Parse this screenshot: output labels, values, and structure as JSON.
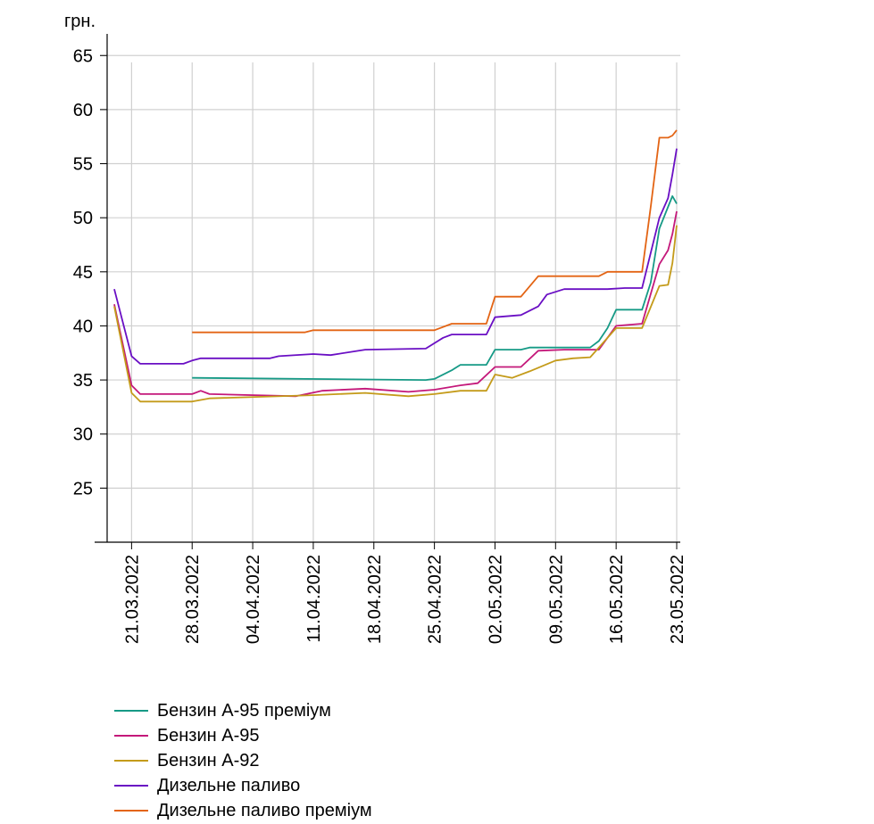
{
  "chart_data": {
    "type": "line",
    "title": "",
    "ylabel": "грн.",
    "xlabel": "",
    "ylim": [
      20,
      67
    ],
    "yticks": [
      25,
      30,
      35,
      40,
      45,
      50,
      55,
      60,
      65
    ],
    "xlim": [
      "2022-03-19",
      "2022-05-23"
    ],
    "xticks": [
      "21.03.2022",
      "28.03.2022",
      "04.04.2022",
      "11.04.2022",
      "18.04.2022",
      "25.04.2022",
      "02.05.2022",
      "09.05.2022",
      "16.05.2022",
      "23.05.2022"
    ],
    "grid": "vertical and horizontal",
    "legend_position": "bottom-left",
    "series": [
      {
        "name": "Бензин А-95 преміум",
        "color": "#169a86",
        "points": [
          [
            "2022-03-28",
            35.2
          ],
          [
            "2022-04-24",
            35.0
          ],
          [
            "2022-04-25",
            35.1
          ],
          [
            "2022-04-27",
            35.9
          ],
          [
            "2022-04-28",
            36.4
          ],
          [
            "2022-04-30",
            36.4
          ],
          [
            "2022-05-01",
            36.4
          ],
          [
            "2022-05-02",
            37.8
          ],
          [
            "2022-05-05",
            37.8
          ],
          [
            "2022-05-06",
            38.0
          ],
          [
            "2022-05-13",
            38.0
          ],
          [
            "2022-05-14",
            38.6
          ],
          [
            "2022-05-15",
            39.8
          ],
          [
            "2022-05-16",
            41.5
          ],
          [
            "2022-05-19",
            41.5
          ],
          [
            "2022-05-20",
            44.0
          ],
          [
            "2022-05-21",
            49.0
          ],
          [
            "2022-05-22",
            51.0
          ],
          [
            "2022-05-22.5",
            52.0
          ],
          [
            "2022-05-23",
            51.3
          ]
        ]
      },
      {
        "name": "Бензин А-95",
        "color": "#c4187a",
        "points": [
          [
            "2022-03-19",
            42.0
          ],
          [
            "2022-03-21",
            34.5
          ],
          [
            "2022-03-22",
            33.7
          ],
          [
            "2022-03-28",
            33.7
          ],
          [
            "2022-03-29",
            34.0
          ],
          [
            "2022-03-30",
            33.7
          ],
          [
            "2022-04-09",
            33.5
          ],
          [
            "2022-04-12",
            34.0
          ],
          [
            "2022-04-17",
            34.2
          ],
          [
            "2022-04-22",
            33.9
          ],
          [
            "2022-04-25",
            34.1
          ],
          [
            "2022-04-28",
            34.5
          ],
          [
            "2022-04-30",
            34.7
          ],
          [
            "2022-05-02",
            36.2
          ],
          [
            "2022-05-05",
            36.2
          ],
          [
            "2022-05-07",
            37.7
          ],
          [
            "2022-05-10",
            37.8
          ],
          [
            "2022-05-14",
            37.8
          ],
          [
            "2022-05-16",
            40.0
          ],
          [
            "2022-05-19",
            40.2
          ],
          [
            "2022-05-21",
            45.7
          ],
          [
            "2022-05-22",
            47.0
          ],
          [
            "2022-05-22.5",
            48.5
          ],
          [
            "2022-05-23",
            50.6
          ]
        ]
      },
      {
        "name": "Бензин А-92",
        "color": "#c49b1a",
        "points": [
          [
            "2022-03-19",
            41.8
          ],
          [
            "2022-03-21",
            33.8
          ],
          [
            "2022-03-22",
            33.0
          ],
          [
            "2022-03-28",
            33.0
          ],
          [
            "2022-03-30",
            33.3
          ],
          [
            "2022-04-11",
            33.6
          ],
          [
            "2022-04-17",
            33.8
          ],
          [
            "2022-04-22",
            33.5
          ],
          [
            "2022-04-25",
            33.7
          ],
          [
            "2022-04-28",
            34.0
          ],
          [
            "2022-05-01",
            34.0
          ],
          [
            "2022-05-02",
            35.5
          ],
          [
            "2022-05-04",
            35.2
          ],
          [
            "2022-05-06",
            35.8
          ],
          [
            "2022-05-09",
            36.8
          ],
          [
            "2022-05-11",
            37.0
          ],
          [
            "2022-05-13",
            37.1
          ],
          [
            "2022-05-16",
            39.8
          ],
          [
            "2022-05-19",
            39.8
          ],
          [
            "2022-05-21",
            43.7
          ],
          [
            "2022-05-22",
            43.8
          ],
          [
            "2022-05-22.5",
            45.8
          ],
          [
            "2022-05-23",
            49.3
          ]
        ]
      },
      {
        "name": "Дизельне паливо",
        "color": "#6a0fc4",
        "points": [
          [
            "2022-03-19",
            43.4
          ],
          [
            "2022-03-21",
            37.2
          ],
          [
            "2022-03-22",
            36.5
          ],
          [
            "2022-03-27",
            36.5
          ],
          [
            "2022-03-28",
            36.8
          ],
          [
            "2022-03-29",
            37.0
          ],
          [
            "2022-04-06",
            37.0
          ],
          [
            "2022-04-07",
            37.2
          ],
          [
            "2022-04-11",
            37.4
          ],
          [
            "2022-04-13",
            37.3
          ],
          [
            "2022-04-17",
            37.8
          ],
          [
            "2022-04-24",
            37.9
          ],
          [
            "2022-04-26",
            38.9
          ],
          [
            "2022-04-27",
            39.2
          ],
          [
            "2022-05-01",
            39.2
          ],
          [
            "2022-05-02",
            40.8
          ],
          [
            "2022-05-05",
            41.0
          ],
          [
            "2022-05-07",
            41.8
          ],
          [
            "2022-05-08",
            42.9
          ],
          [
            "2022-05-10",
            43.4
          ],
          [
            "2022-05-15",
            43.4
          ],
          [
            "2022-05-17",
            43.5
          ],
          [
            "2022-05-19",
            43.5
          ],
          [
            "2022-05-21",
            50.0
          ],
          [
            "2022-05-22",
            51.8
          ],
          [
            "2022-05-22.5",
            54.0
          ],
          [
            "2022-05-23",
            56.4
          ]
        ]
      },
      {
        "name": "Дизельне паливо преміум",
        "color": "#e36414",
        "points": [
          [
            "2022-03-28",
            39.4
          ],
          [
            "2022-04-10",
            39.4
          ],
          [
            "2022-04-11",
            39.6
          ],
          [
            "2022-04-24",
            39.6
          ],
          [
            "2022-04-25",
            39.6
          ],
          [
            "2022-04-27",
            40.2
          ],
          [
            "2022-05-01",
            40.2
          ],
          [
            "2022-05-02",
            42.7
          ],
          [
            "2022-05-05",
            42.7
          ],
          [
            "2022-05-07",
            44.6
          ],
          [
            "2022-05-14",
            44.6
          ],
          [
            "2022-05-15",
            45.0
          ],
          [
            "2022-05-19",
            45.0
          ],
          [
            "2022-05-20",
            51.0
          ],
          [
            "2022-05-21",
            57.4
          ],
          [
            "2022-05-22",
            57.4
          ],
          [
            "2022-05-22.5",
            57.6
          ],
          [
            "2022-05-23",
            58.1
          ]
        ]
      }
    ]
  }
}
